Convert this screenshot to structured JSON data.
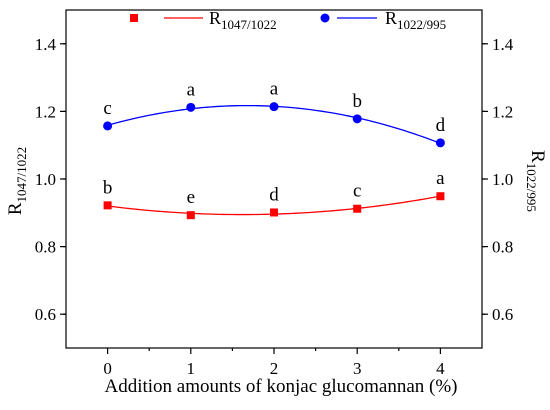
{
  "chart_data": {
    "type": "scatter",
    "x": [
      0,
      1,
      2,
      3,
      4
    ],
    "xlabel": "Addition amounts of konjac glucomannan (%)",
    "ylabel_left": {
      "main": "R",
      "sub": "1047/1022"
    },
    "ylabel_right": {
      "main": "R",
      "sub": "1022/995"
    },
    "xlim": [
      -0.5,
      4.5
    ],
    "ylim": [
      0.5,
      1.5
    ],
    "xticks": [
      0,
      1,
      2,
      3,
      4
    ],
    "yticks": [
      0.6,
      0.8,
      1.0,
      1.2,
      1.4
    ],
    "ytick_labels": [
      "0.6",
      "0.8",
      "1.0",
      "1.2",
      "1.4"
    ],
    "grid": false,
    "legend_position": "top",
    "series": [
      {
        "name": {
          "main": "R",
          "sub": "1047/1022"
        },
        "color": "#ff0000",
        "marker": "square",
        "values": [
          0.922,
          0.893,
          0.901,
          0.912,
          0.949
        ],
        "letters": [
          "b",
          "e",
          "d",
          "c",
          "a"
        ],
        "fit": "quadratic"
      },
      {
        "name": {
          "main": "R",
          "sub": "1022/995"
        },
        "color": "#0000ff",
        "marker": "circle",
        "values": [
          1.157,
          1.212,
          1.214,
          1.178,
          1.107
        ],
        "letters": [
          "c",
          "a",
          "a",
          "b",
          "d"
        ],
        "fit": "quadratic"
      }
    ]
  }
}
